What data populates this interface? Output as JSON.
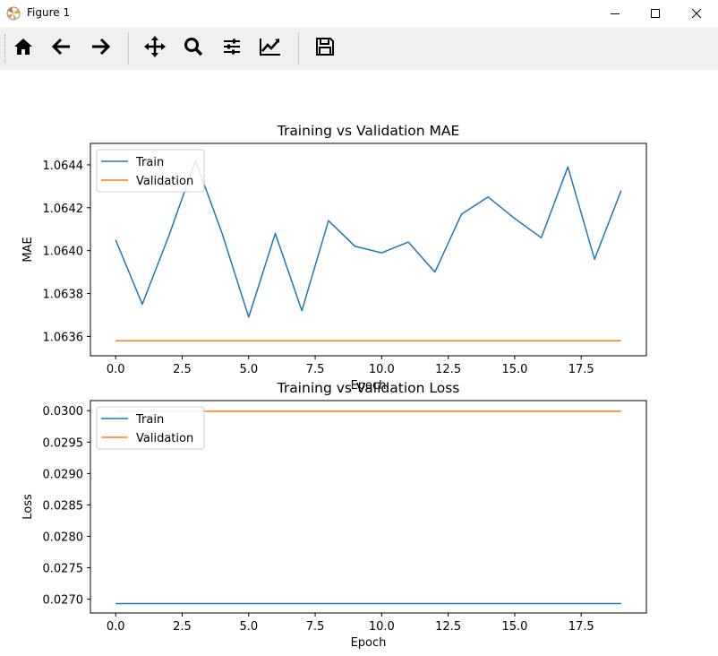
{
  "window": {
    "title": "Figure 1",
    "controls": [
      "minimize-icon",
      "maximize-icon",
      "close-icon"
    ]
  },
  "toolbar": {
    "buttons": [
      "home-icon",
      "back-icon",
      "forward-icon",
      "pan-icon",
      "zoom-icon",
      "configure-subplots-icon",
      "edit-axis-icon",
      "save-icon"
    ]
  },
  "colors": {
    "train": "#1f77b4",
    "validation": "#ff7f0e"
  },
  "chart_data": [
    {
      "type": "line",
      "title": "Training vs Validation MAE",
      "xlabel": "Epoch",
      "ylabel": "MAE",
      "x": [
        0,
        1,
        2,
        3,
        4,
        5,
        6,
        7,
        8,
        9,
        10,
        11,
        12,
        13,
        14,
        15,
        16,
        17,
        18,
        19
      ],
      "xlim": [
        -0.95,
        19.95
      ],
      "ylim": [
        1.06351,
        1.0645
      ],
      "xticks": [
        0.0,
        2.5,
        5.0,
        7.5,
        10.0,
        12.5,
        15.0,
        17.5
      ],
      "xtick_labels": [
        "0.0",
        "2.5",
        "5.0",
        "7.5",
        "10.0",
        "12.5",
        "15.0",
        "17.5"
      ],
      "yticks": [
        1.0636,
        1.0638,
        1.064,
        1.0642,
        1.0644
      ],
      "ytick_labels": [
        "1.0636",
        "1.0638",
        "1.0640",
        "1.0642",
        "1.0644"
      ],
      "legend_loc": "upper left",
      "grid": false,
      "series": [
        {
          "name": "Train",
          "color": "#1f77b4",
          "values": [
            1.06405,
            1.06375,
            1.06407,
            1.06442,
            1.06408,
            1.06369,
            1.06408,
            1.06372,
            1.06414,
            1.06402,
            1.06399,
            1.06404,
            1.0639,
            1.06417,
            1.06425,
            1.06415,
            1.06406,
            1.06439,
            1.06396,
            1.06428
          ]
        },
        {
          "name": "Validation",
          "color": "#ff7f0e",
          "values": [
            1.06358,
            1.06358,
            1.06358,
            1.06358,
            1.06358,
            1.06358,
            1.06358,
            1.06358,
            1.06358,
            1.06358,
            1.06358,
            1.06358,
            1.06358,
            1.06358,
            1.06358,
            1.06358,
            1.06358,
            1.06358,
            1.06358,
            1.06358
          ]
        }
      ]
    },
    {
      "type": "line",
      "title": "Training vs Validation Loss",
      "xlabel": "Epoch",
      "ylabel": "Loss",
      "x": [
        0,
        1,
        2,
        3,
        4,
        5,
        6,
        7,
        8,
        9,
        10,
        11,
        12,
        13,
        14,
        15,
        16,
        17,
        18,
        19
      ],
      "xlim": [
        -0.95,
        19.95
      ],
      "ylim": [
        0.02678,
        0.03016
      ],
      "xticks": [
        0.0,
        2.5,
        5.0,
        7.5,
        10.0,
        12.5,
        15.0,
        17.5
      ],
      "xtick_labels": [
        "0.0",
        "2.5",
        "5.0",
        "7.5",
        "10.0",
        "12.5",
        "15.0",
        "17.5"
      ],
      "yticks": [
        0.027,
        0.0275,
        0.028,
        0.0285,
        0.029,
        0.0295,
        0.03
      ],
      "ytick_labels": [
        "0.0270",
        "0.0275",
        "0.0280",
        "0.0285",
        "0.0290",
        "0.0295",
        "0.0300"
      ],
      "legend_loc": "upper left",
      "grid": false,
      "series": [
        {
          "name": "Train",
          "color": "#1f77b4",
          "values": [
            0.02693,
            0.02693,
            0.02693,
            0.02693,
            0.02693,
            0.02693,
            0.02693,
            0.02693,
            0.02693,
            0.02693,
            0.02693,
            0.02693,
            0.02693,
            0.02693,
            0.02693,
            0.02693,
            0.02693,
            0.02693,
            0.02693,
            0.02693
          ]
        },
        {
          "name": "Validation",
          "color": "#ff7f0e",
          "values": [
            0.02999,
            0.02999,
            0.02999,
            0.02999,
            0.02999,
            0.02999,
            0.02999,
            0.02999,
            0.02999,
            0.02999,
            0.02999,
            0.02999,
            0.02999,
            0.02999,
            0.02999,
            0.02999,
            0.02999,
            0.02999,
            0.02999,
            0.02999
          ]
        }
      ]
    }
  ]
}
